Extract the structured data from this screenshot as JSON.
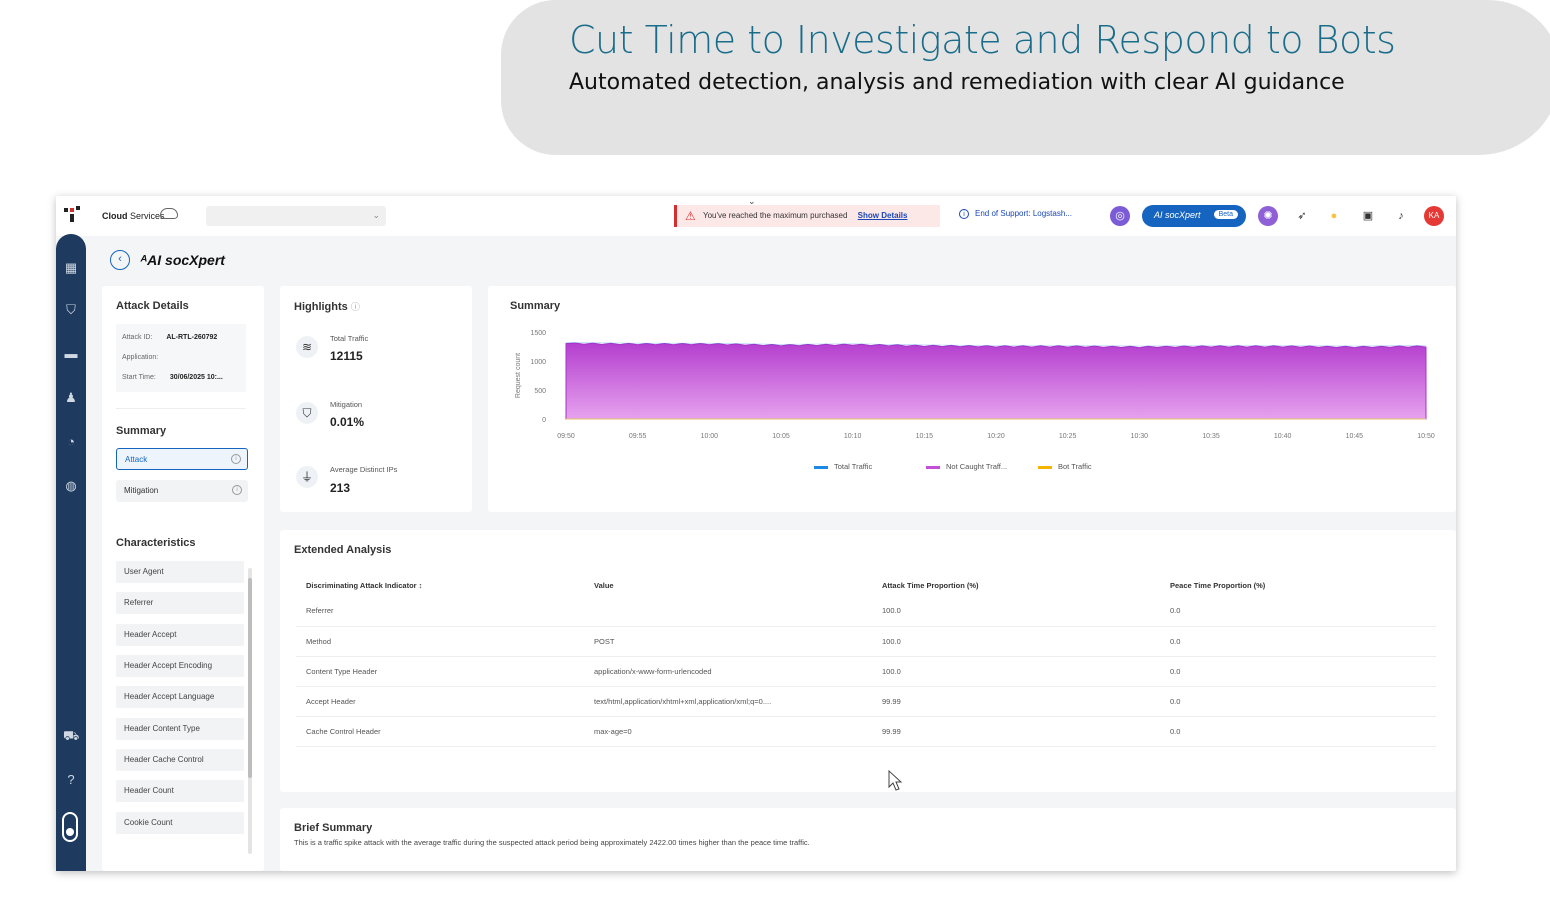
{
  "banner": {
    "title": "Cut Time to Investigate and Respond to Bots",
    "subtitle": "Automated detection, analysis and remediation with clear AI guidance"
  },
  "topbar": {
    "brand_bold": "Cloud",
    "brand_rest": " Services",
    "alert_text": "You've reached the maximum purchased",
    "alert_link": "Show Details",
    "eos_text": "End of Support: Logstash...",
    "pill_label": "AI socXpert",
    "pill_badge": "Beta",
    "avatar": "KA"
  },
  "page": {
    "title": "AI socXpert",
    "title_prefix": "ᴬ"
  },
  "attack_details": {
    "heading": "Attack Details",
    "attack_id_label": "Attack ID:",
    "attack_id": "AL-RTL-260792",
    "application_label": "Application:",
    "application": "",
    "start_time_label": "Start Time:",
    "start_time": "30/06/2025 10:..."
  },
  "summary_nav": {
    "heading": "Summary",
    "items": [
      {
        "label": "Attack",
        "active": true
      },
      {
        "label": "Mitigation",
        "active": false
      }
    ]
  },
  "characteristics": {
    "heading": "Characteristics",
    "items": [
      "User Agent",
      "Referrer",
      "Header Accept",
      "Header Accept Encoding",
      "Header Accept Language",
      "Header Content Type",
      "Header Cache Control",
      "Header Count",
      "Cookie Count"
    ]
  },
  "highlights": {
    "heading": "Highlights",
    "items": [
      {
        "label": "Total Traffic",
        "value": "12115",
        "icon": "wifi-icon"
      },
      {
        "label": "Mitigation",
        "value": "0.01%",
        "icon": "shield-icon"
      },
      {
        "label": "Average Distinct IPs",
        "value": "213",
        "icon": "antenna-icon"
      }
    ]
  },
  "summary_chart_title": "Summary",
  "chart_data": {
    "type": "area",
    "title": "Summary",
    "xlabel": "",
    "ylabel": "Request count",
    "ylim": [
      0,
      1500
    ],
    "yticks": [
      "1500",
      "1000",
      "500",
      "0"
    ],
    "x": [
      "09:50",
      "09:55",
      "10:00",
      "10:05",
      "10:10",
      "10:15",
      "10:20",
      "10:25",
      "10:30",
      "10:35",
      "10:40",
      "10:45",
      "10:50"
    ],
    "series": [
      {
        "name": "Total Traffic",
        "color": "#1e88e5",
        "values": [
          1300,
          1290,
          1290,
          1270,
          1280,
          1260,
          1250,
          1250,
          1240,
          1250,
          1250,
          1240,
          1250
        ]
      },
      {
        "name": "Not Caught Traff...",
        "color": "#c24fd6",
        "values": [
          1300,
          1290,
          1290,
          1270,
          1280,
          1260,
          1250,
          1250,
          1240,
          1250,
          1250,
          1240,
          1250
        ]
      },
      {
        "name": "Bot Traffic",
        "color": "#f5b400",
        "values": [
          0,
          0,
          0,
          0,
          0,
          0,
          0,
          0,
          0,
          0,
          0,
          0,
          0
        ]
      }
    ],
    "legend": "bottom",
    "grid": false
  },
  "extended": {
    "heading": "Extended Analysis",
    "columns": [
      "Discriminating Attack Indicator ↕",
      "Value",
      "Attack Time Proportion (%)",
      "Peace Time Proportion (%)"
    ],
    "rows": [
      [
        "Referrer",
        "",
        "100.0",
        "0.0"
      ],
      [
        "Method",
        "POST",
        "100.0",
        "0.0"
      ],
      [
        "Content Type Header",
        "application/x-www-form-urlencoded",
        "100.0",
        "0.0"
      ],
      [
        "Accept Header",
        "text/html,application/xhtml+xml,application/xml;q=0....",
        "99.99",
        "0.0"
      ],
      [
        "Cache Control Header",
        "max-age=0",
        "99.99",
        "0.0"
      ]
    ]
  },
  "brief": {
    "heading": "Brief Summary",
    "text": "This is a traffic spike attack with the average traffic during the suspected attack period being approximately 2422.00 times higher than the peace time traffic."
  }
}
